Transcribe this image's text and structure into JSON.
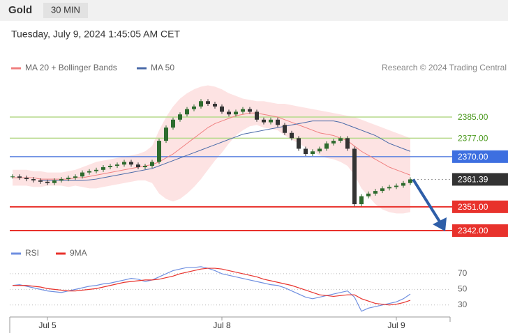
{
  "header": {
    "symbol": "Gold",
    "interval": "30 MIN",
    "datetime": "Tuesday, July 9, 2024 1:45:05 AM CET"
  },
  "credit": "Research © 2024 Trading Central",
  "chart_data": {
    "type": "candlestick",
    "categories": [
      null,
      null,
      null,
      null,
      null,
      "Jul 5",
      null,
      null,
      null,
      null,
      null,
      null,
      null,
      null,
      null,
      null,
      null,
      null,
      null,
      null,
      null,
      null,
      null,
      null,
      null,
      null,
      null,
      null,
      null,
      null,
      "Jul 8",
      null,
      null,
      null,
      null,
      null,
      null,
      null,
      null,
      null,
      null,
      null,
      null,
      null,
      null,
      null,
      null,
      null,
      null,
      null,
      null,
      null,
      null,
      null,
      null,
      "Jul 9",
      null,
      null
    ],
    "close": [
      2362.5,
      2362,
      2361.5,
      2361,
      2360.5,
      2360,
      2361,
      2361.5,
      2362,
      2362.5,
      2364,
      2364.5,
      2365,
      2366,
      2366.5,
      2367,
      2368,
      2367,
      2366,
      2366.5,
      2368,
      2376,
      2381,
      2384,
      2386,
      2388,
      2389,
      2391,
      2390,
      2389,
      2387,
      2386,
      2387,
      2388,
      2387,
      2384,
      2383,
      2384,
      2382,
      2379,
      2377,
      2373,
      2371,
      2372,
      2373,
      2375,
      2376,
      2377,
      2373,
      2352,
      2355,
      2356,
      2357,
      2358,
      2358.5,
      2359,
      2360,
      2361.39
    ],
    "up_color": "#2e6b2e",
    "down_color": "#333333",
    "series": [
      {
        "name": "MA 20 + Bollinger Bands",
        "color": "#f08080",
        "band_color": "#fde0e0",
        "values": [
          2362,
          2362,
          2362,
          2362,
          2361.5,
          2361.5,
          2361.5,
          2361.5,
          2361.5,
          2362,
          2362,
          2362.5,
          2363,
          2363.5,
          2364,
          2364.5,
          2365,
          2365.5,
          2366,
          2366.5,
          2367,
          2368,
          2369.5,
          2371,
          2373,
          2375,
          2377,
          2379,
          2381,
          2382.5,
          2383.5,
          2384.5,
          2385.5,
          2386,
          2386.5,
          2386.5,
          2386,
          2385.5,
          2385,
          2384,
          2383,
          2382,
          2381,
          2380,
          2379,
          2378.5,
          2378,
          2377,
          2376,
          2374,
          2372,
          2370.5,
          2369,
          2367.5,
          2366,
          2365,
          2364,
          2363
        ],
        "upper": [
          2365,
          2365,
          2365,
          2364.5,
          2364.5,
          2364,
          2364,
          2364,
          2364.5,
          2365,
          2366,
          2367,
          2368,
          2368.5,
          2369,
          2369.5,
          2370,
          2370.5,
          2371,
          2372,
          2374,
          2380,
          2385,
          2389,
          2392,
          2394,
          2395.5,
          2396.5,
          2397,
          2396.5,
          2395.5,
          2394,
          2393,
          2392,
          2391.5,
          2391,
          2391,
          2390.5,
          2390,
          2390,
          2389.5,
          2389,
          2388.5,
          2388,
          2387.5,
          2387,
          2386.5,
          2386,
          2385.5,
          2385,
          2384,
          2383,
          2382,
          2381,
          2380,
          2379,
          2378,
          2377
        ],
        "lower": [
          2359,
          2359,
          2359,
          2358.5,
          2358.5,
          2359,
          2359,
          2359,
          2358.5,
          2359,
          2358.5,
          2358,
          2358,
          2358.5,
          2359,
          2359.5,
          2360,
          2360.5,
          2361,
          2361,
          2360,
          2356,
          2354,
          2353,
          2354,
          2356,
          2358.5,
          2361.5,
          2365,
          2368.5,
          2371.5,
          2375,
          2378,
          2380,
          2381.5,
          2382,
          2381,
          2380.5,
          2380,
          2378,
          2376.5,
          2375,
          2373.5,
          2372,
          2370.5,
          2369.5,
          2369,
          2368,
          2366.5,
          2363,
          2358,
          2355,
          2352,
          2350,
          2349,
          2348.5,
          2348.5,
          2349
        ]
      },
      {
        "name": "MA 50",
        "color": "#4a6aa8",
        "values": [
          null,
          null,
          null,
          null,
          2361,
          2361,
          2361,
          2361,
          2361,
          2361,
          2361,
          2361.2,
          2361.5,
          2362,
          2362.5,
          2363,
          2363.5,
          2364,
          2364.5,
          2365,
          2365.5,
          2366.5,
          2367.5,
          2368.5,
          2369.5,
          2370.5,
          2371.5,
          2372.5,
          2373.5,
          2374.5,
          2375.5,
          2376.5,
          2377.5,
          2378.5,
          2379,
          2379.5,
          2380,
          2380.5,
          2381,
          2381.5,
          2382,
          2382.5,
          2383,
          2383.5,
          2383.5,
          2383.5,
          2383.5,
          2383,
          2382,
          2381,
          2380,
          2379,
          2378,
          2376.5,
          2375,
          2374,
          2373,
          2372
        ]
      }
    ],
    "ylim": [
      2338.3,
      2400.3
    ],
    "levels": [
      {
        "price": {
          "value": 2385,
          "label": "2385.00"
        },
        "color": "#b5d98a",
        "label_color": "#4c9a1f",
        "style": "solid"
      },
      {
        "price": {
          "value": 2377,
          "label": "2377.00"
        },
        "color": "#b5d98a",
        "label_color": "#4c9a1f",
        "style": "solid"
      },
      {
        "price": {
          "value": 2370,
          "label": "2370.00"
        },
        "color": "#5b82e0",
        "label_color": "#3d6fe0",
        "style": "solid"
      },
      {
        "price": 2361.39,
        "color": "#999999",
        "label_color": "#333333",
        "style": "dotted"
      },
      {
        "price": {
          "value": 2351,
          "label": "2351.00"
        },
        "color": "#e8322c",
        "label_color": "#e8322c",
        "style": "solid"
      },
      {
        "price": {
          "value": 2342,
          "label": "2342.00"
        },
        "color": "#e8322c",
        "label_color": "#e8322c",
        "style": "solid"
      }
    ],
    "rsi": {
      "ylim": [
        20,
        90
      ],
      "yticks": [
        70,
        50,
        30
      ],
      "series": [
        {
          "name": "RSI",
          "color": "#6f8fe0",
          "values": [
            55,
            56,
            54,
            52,
            50,
            48,
            47,
            46,
            48,
            50,
            52,
            54,
            55,
            57,
            58,
            60,
            62,
            64,
            63,
            60,
            62,
            66,
            70,
            74,
            76,
            78,
            78,
            79,
            77,
            74,
            70,
            68,
            66,
            64,
            62,
            60,
            58,
            56,
            55,
            52,
            48,
            44,
            40,
            38,
            40,
            42,
            44,
            46,
            48,
            40,
            22,
            26,
            28,
            30,
            32,
            34,
            38,
            44
          ]
        },
        {
          "name": "9MA",
          "color": "#e8322c",
          "values": [
            55,
            55,
            55,
            54,
            53,
            51,
            50,
            49,
            48,
            48,
            49,
            50,
            51,
            53,
            55,
            57,
            59,
            60,
            61,
            62,
            62,
            63,
            65,
            67,
            70,
            72,
            74,
            76,
            77,
            77,
            76,
            74,
            72,
            70,
            68,
            66,
            63,
            61,
            59,
            57,
            55,
            52,
            49,
            46,
            43,
            42,
            41,
            42,
            43,
            43,
            38,
            35,
            32,
            31,
            30,
            31,
            33,
            36
          ]
        }
      ]
    }
  }
}
